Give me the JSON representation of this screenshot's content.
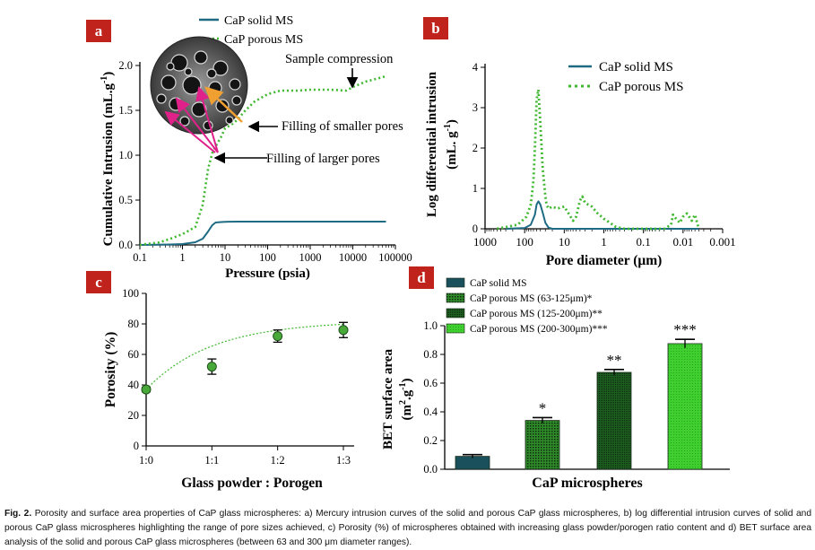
{
  "figure": {
    "caption_label": "Fig. 2.",
    "caption_text": "Porosity and surface area properties of CaP glass microspheres: a) Mercury intrusion curves of the solid and porous CaP glass microspheres, b) log differential intrusion curves of solid and porous CaP glass microspheres highlighting the range of pore sizes achieved, c) Porosity (%) of microspheres obtained with increasing glass powder/porogen ratio content and d) BET surface area analysis of the solid and porous CaP glass microspheres (between 63 and 300 μm diameter ranges)."
  },
  "colors": {
    "panel_label_bg": "#c0231c",
    "solid": "#1f6b84",
    "porous": "#3fb830",
    "dark_bar": "#1a4f5c",
    "arrow_pink": "#e0218a",
    "arrow_orange": "#f0a030"
  },
  "chart_data": [
    {
      "panel": "a",
      "type": "line",
      "x_scale": "log",
      "xlabel": "Pressure (psia)",
      "ylabel_main": "Cumulative Intrusion (mL.g",
      "ylabel_sup": "-1",
      "ylabel_end": ")",
      "xlim": [
        0.1,
        100000
      ],
      "ylim": [
        0,
        2.0
      ],
      "xticks": [
        "0.1",
        "1",
        "10",
        "100",
        "1000",
        "10000",
        "100000"
      ],
      "yticks": [
        "0.0",
        "0.5",
        "1.0",
        "1.5",
        "2.0"
      ],
      "series": [
        {
          "name": "CaP solid MS",
          "style": "solid",
          "x": [
            0.1,
            0.5,
            1,
            2,
            3,
            4,
            5,
            6,
            8,
            10,
            20,
            100,
            1000,
            10000,
            60000
          ],
          "y": [
            0.0,
            0.005,
            0.01,
            0.03,
            0.07,
            0.15,
            0.22,
            0.25,
            0.255,
            0.258,
            0.26,
            0.26,
            0.26,
            0.26,
            0.26
          ]
        },
        {
          "name": "CaP porous MS",
          "style": "dotted",
          "x": [
            0.1,
            0.3,
            0.6,
            1,
            2,
            3,
            4,
            5,
            6,
            8,
            10,
            15,
            20,
            30,
            50,
            100,
            200,
            500,
            1000,
            3000,
            7000,
            10000,
            20000,
            60000
          ],
          "y": [
            0.0,
            0.03,
            0.08,
            0.12,
            0.2,
            0.45,
            0.85,
            1.02,
            1.1,
            1.2,
            1.3,
            1.35,
            1.4,
            1.5,
            1.6,
            1.68,
            1.72,
            1.72,
            1.73,
            1.73,
            1.72,
            1.76,
            1.82,
            1.88
          ]
        }
      ],
      "annotations": [
        "Sample compression",
        "Filling of smaller pores",
        "Filling of larger pores"
      ]
    },
    {
      "panel": "b",
      "type": "line",
      "x_scale": "log-reversed",
      "xlabel": "Pore diameter (μm)",
      "ylabel_line1": "Log differential intrusion",
      "ylabel_line2_main": "(mL. g",
      "ylabel_line2_sup": "-1",
      "ylabel_line2_end": ")",
      "xlim": [
        1000,
        0.001
      ],
      "ylim": [
        0,
        4
      ],
      "xticks": [
        "1000",
        "100",
        "10",
        "1",
        "0.1",
        "0.01",
        "0.001"
      ],
      "yticks": [
        "0",
        "1",
        "2",
        "3",
        "4"
      ],
      "series": [
        {
          "name": "CaP solid MS",
          "style": "solid",
          "x": [
            300,
            100,
            70,
            55,
            50,
            45,
            40,
            35,
            30,
            25,
            20,
            0.004
          ],
          "y": [
            0,
            0.02,
            0.1,
            0.35,
            0.6,
            0.68,
            0.6,
            0.4,
            0.15,
            0.03,
            0,
            0
          ]
        },
        {
          "name": "CaP porous MS",
          "style": "dotted",
          "x": [
            500,
            150,
            90,
            70,
            60,
            55,
            50,
            45,
            40,
            35,
            30,
            28,
            25,
            20,
            15,
            10,
            8,
            6,
            5,
            4,
            3.5,
            3,
            2.5,
            2,
            1.5,
            1,
            0.7,
            0.5,
            0.3,
            0.1,
            0.05,
            0.03,
            0.02,
            0.018,
            0.015,
            0.012,
            0.01,
            0.008,
            0.006,
            0.005,
            0.004
          ],
          "y": [
            0,
            0.1,
            0.3,
            0.6,
            1.2,
            2.0,
            3.2,
            3.45,
            2.6,
            1.5,
            0.8,
            0.6,
            0.5,
            0.55,
            0.5,
            0.55,
            0.4,
            0.2,
            0.3,
            0.7,
            0.8,
            0.65,
            0.6,
            0.55,
            0.4,
            0.25,
            0.15,
            0.05,
            0.0,
            0.0,
            0.0,
            0.0,
            0.1,
            0.35,
            0.25,
            0.15,
            0.3,
            0.38,
            0.2,
            0.35,
            0.0
          ]
        }
      ]
    },
    {
      "panel": "c",
      "type": "scatter",
      "xlabel": "Glass powder : Porogen",
      "ylabel": "Porosity (%)",
      "ylim": [
        0,
        100
      ],
      "categories": [
        "1:0",
        "1:1",
        "1:2",
        "1:3"
      ],
      "yticks": [
        "0",
        "20",
        "40",
        "60",
        "80",
        "100"
      ],
      "values": [
        37,
        52,
        72,
        76
      ],
      "errors": [
        1.5,
        5,
        4,
        5
      ]
    },
    {
      "panel": "d",
      "type": "bar",
      "xlabel": "CaP microspheres",
      "ylabel_main": "BET surface area",
      "ylabel_units_a": "(m",
      "ylabel_units_sup1": "2",
      "ylabel_units_b": ".g",
      "ylabel_units_sup2": "-1",
      "ylabel_units_c": ")",
      "ylim": [
        0,
        1.0
      ],
      "yticks": [
        "0.0",
        "0.2",
        "0.4",
        "0.6",
        "0.8",
        "1.0"
      ],
      "series": [
        {
          "name": "CaP solid MS",
          "value": 0.09,
          "error": 0.012,
          "sig": ""
        },
        {
          "name": "CaP porous MS (63-125μm)*",
          "value": 0.34,
          "error": 0.02,
          "sig": "*"
        },
        {
          "name": "CaP porous MS (125-200μm)**",
          "value": 0.675,
          "error": 0.02,
          "sig": "**"
        },
        {
          "name": "CaP porous MS (200-300μm)***",
          "value": 0.875,
          "error": 0.03,
          "sig": "***"
        }
      ]
    }
  ]
}
